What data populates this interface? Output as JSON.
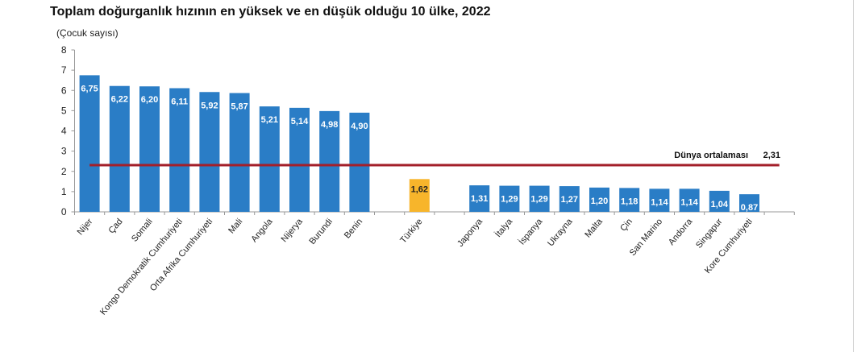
{
  "chart_data": {
    "type": "bar",
    "title": "Toplam doğurganlık hızının en yüksek ve en düşük olduğu 10 ülke, 2022",
    "ylabel": "(Çocuk sayısı)",
    "xlabel": "",
    "ylim": [
      0,
      8
    ],
    "yticks": [
      "0",
      "1",
      "2",
      "3",
      "4",
      "5",
      "6",
      "7",
      "8"
    ],
    "categories": [
      "Nijer",
      "Çad",
      "Somali",
      "Kongo Demokratik Cumhuriyeti",
      "Orta Afrika Cumhuriyeti",
      "Mali",
      "Angola",
      "Nijerya",
      "Burundi",
      "Benin",
      "Türkiye",
      "Japonya",
      "İtalya",
      "İspanya",
      "Ukrayna",
      "Malta",
      "Çin",
      "San Marino",
      "Andorra",
      "Singapur",
      "Kore Cumhuriyeti"
    ],
    "values": [
      6.75,
      6.22,
      6.2,
      6.11,
      5.92,
      5.87,
      5.21,
      5.14,
      4.98,
      4.9,
      1.62,
      1.31,
      1.29,
      1.29,
      1.27,
      1.2,
      1.18,
      1.14,
      1.14,
      1.04,
      0.87
    ],
    "labels": [
      "6,75",
      "6,22",
      "6,20",
      "6,11",
      "5,92",
      "5,87",
      "5,21",
      "5,14",
      "4,98",
      "4,90",
      "1,62",
      "1,31",
      "1,29",
      "1,29",
      "1,27",
      "1,20",
      "1,18",
      "1,14",
      "1,14",
      "1,04",
      "0,87"
    ],
    "highlight": "Türkiye",
    "reference_line": {
      "label": "Dünya ortalaması",
      "value": 2.31,
      "value_label": "2,31",
      "color": "#a31f2a"
    },
    "colors": {
      "bar": "#2a7dc6",
      "highlight": "#f7b52b",
      "bar_label": "#ffffff",
      "highlight_label": "#222222"
    },
    "grid": false
  }
}
